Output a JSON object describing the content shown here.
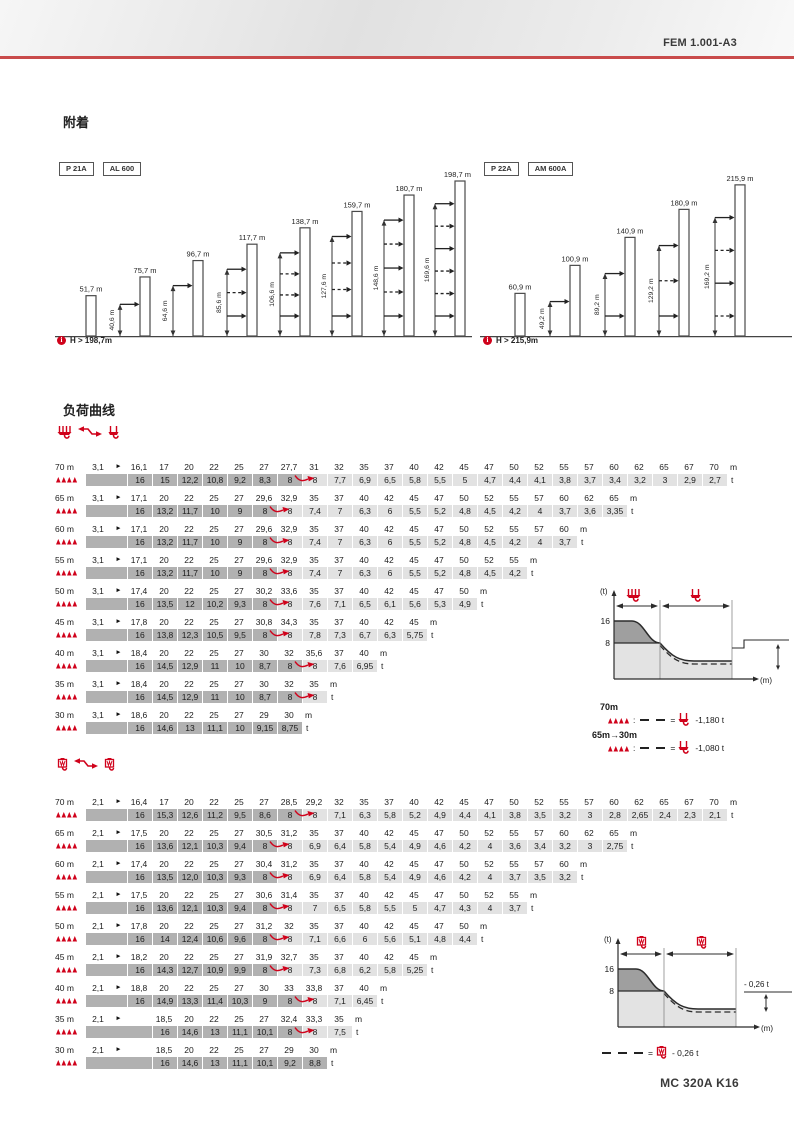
{
  "header": {
    "doc_ref": "FEM 1.001-A3"
  },
  "attachment": {
    "title": "附着",
    "diagrams": [
      {
        "badges": [
          "P 21A",
          "AL 600"
        ],
        "note": "H > 198,7m",
        "towers": [
          {
            "height_label": "51,7 m",
            "height_m": 51.7,
            "ties": []
          },
          {
            "height_label": "75,7 m",
            "height_m": 75.7,
            "anchor_label": "40,6 m",
            "anchor_m": 40.6,
            "ties": [
              "solid"
            ]
          },
          {
            "height_label": "96,7 m",
            "height_m": 96.7,
            "anchor_label": "64,6 m",
            "anchor_m": 64.6,
            "ties": [
              "solid"
            ]
          },
          {
            "height_label": "117,7 m",
            "height_m": 117.7,
            "anchor_label": "85,6 m",
            "anchor_m": 85.6,
            "ties": [
              "solid",
              "dashed",
              "solid"
            ]
          },
          {
            "height_label": "138,7 m",
            "height_m": 138.7,
            "anchor_label": "106,6 m",
            "anchor_m": 106.6,
            "ties": [
              "solid",
              "dashed",
              "dashed",
              "solid"
            ]
          },
          {
            "height_label": "159,7 m",
            "height_m": 159.7,
            "anchor_label": "127,6 m",
            "anchor_m": 127.6,
            "ties": [
              "solid",
              "dashed",
              "dashed",
              "solid"
            ]
          },
          {
            "height_label": "180,7 m",
            "height_m": 180.7,
            "anchor_label": "148,6 m",
            "anchor_m": 148.6,
            "ties": [
              "solid",
              "dashed",
              "solid",
              "dashed",
              "solid"
            ]
          },
          {
            "height_label": "198,7 m",
            "height_m": 198.7,
            "anchor_label": "169,6 m",
            "anchor_m": 169.6,
            "ties": [
              "solid",
              "dashed",
              "solid",
              "dashed",
              "dashed",
              "solid"
            ]
          }
        ]
      },
      {
        "badges": [
          "P 22A",
          "AM 600A"
        ],
        "note": "H > 215,9m",
        "towers": [
          {
            "height_label": "60,9 m",
            "height_m": 60.9,
            "ties": []
          },
          {
            "height_label": "100,9 m",
            "height_m": 100.9,
            "anchor_label": "49,2 m",
            "anchor_m": 49.2,
            "ties": [
              "solid"
            ]
          },
          {
            "height_label": "140,9 m",
            "height_m": 140.9,
            "anchor_label": "89,2 m",
            "anchor_m": 89.2,
            "ties": [
              "solid",
              "solid"
            ]
          },
          {
            "height_label": "180,9 m",
            "height_m": 180.9,
            "anchor_label": "129,2 m",
            "anchor_m": 129.2,
            "ties": [
              "solid",
              "dashed",
              "solid"
            ]
          },
          {
            "height_label": "215,9 m",
            "height_m": 215.9,
            "anchor_label": "169,2 m",
            "anchor_m": 169.2,
            "ties": [
              "solid",
              "dashed",
              "solid",
              "dashed"
            ]
          }
        ]
      }
    ]
  },
  "load_curves": {
    "title": "负荷曲线",
    "separators": {
      "colon": ":",
      "equals": "="
    },
    "tables": [
      {
        "icon": "four-fall-to-two-fall",
        "pointer": "►",
        "radius_unit": "m",
        "load_unit": "t",
        "rows": [
          {
            "height": "70 m",
            "min_radius": "3,1",
            "indent": 0,
            "arrow_idx": 6,
            "radii": [
              "16,1",
              "17",
              "20",
              "22",
              "25",
              "27",
              "27,7",
              "31",
              "32",
              "35",
              "37",
              "40",
              "42",
              "45",
              "47",
              "50",
              "52",
              "55",
              "57",
              "60",
              "62",
              "65",
              "67",
              "70"
            ],
            "loads": [
              "16",
              "15",
              "12,2",
              "10,8",
              "9,2",
              "8,3",
              "8",
              "8",
              "7,7",
              "6,9",
              "6,5",
              "5,8",
              "5,5",
              "5",
              "4,7",
              "4,4",
              "4,1",
              "3,8",
              "3,7",
              "3,4",
              "3,2",
              "3",
              "2,9",
              "2,7"
            ]
          },
          {
            "height": "65 m",
            "min_radius": "3,1",
            "indent": 0,
            "arrow_idx": 5,
            "radii": [
              "17,1",
              "20",
              "22",
              "25",
              "27",
              "29,6",
              "32,9",
              "35",
              "37",
              "40",
              "42",
              "45",
              "47",
              "50",
              "52",
              "55",
              "57",
              "60",
              "62",
              "65"
            ],
            "loads": [
              "16",
              "13,2",
              "11,7",
              "10",
              "9",
              "8",
              "8",
              "7,4",
              "7",
              "6,3",
              "6",
              "5,5",
              "5,2",
              "4,8",
              "4,5",
              "4,2",
              "4",
              "3,7",
              "3,6",
              "3,35"
            ]
          },
          {
            "height": "60 m",
            "min_radius": "3,1",
            "indent": 0,
            "arrow_idx": 5,
            "radii": [
              "17,1",
              "20",
              "22",
              "25",
              "27",
              "29,6",
              "32,9",
              "35",
              "37",
              "40",
              "42",
              "45",
              "47",
              "50",
              "52",
              "55",
              "57",
              "60"
            ],
            "loads": [
              "16",
              "13,2",
              "11,7",
              "10",
              "9",
              "8",
              "8",
              "7,4",
              "7",
              "6,3",
              "6",
              "5,5",
              "5,2",
              "4,8",
              "4,5",
              "4,2",
              "4",
              "3,7"
            ]
          },
          {
            "height": "55 m",
            "min_radius": "3,1",
            "indent": 0,
            "arrow_idx": 5,
            "radii": [
              "17,1",
              "20",
              "22",
              "25",
              "27",
              "29,6",
              "32,9",
              "35",
              "37",
              "40",
              "42",
              "45",
              "47",
              "50",
              "52",
              "55"
            ],
            "loads": [
              "16",
              "13,2",
              "11,7",
              "10",
              "9",
              "8",
              "8",
              "7,4",
              "7",
              "6,3",
              "6",
              "5,5",
              "5,2",
              "4,8",
              "4,5",
              "4,2"
            ]
          },
          {
            "height": "50 m",
            "min_radius": "3,1",
            "indent": 0,
            "arrow_idx": 5,
            "radii": [
              "17,4",
              "20",
              "22",
              "25",
              "27",
              "30,2",
              "33,6",
              "35",
              "37",
              "40",
              "42",
              "45",
              "47",
              "50"
            ],
            "loads": [
              "16",
              "13,5",
              "12",
              "10,2",
              "9,3",
              "8",
              "8",
              "7,6",
              "7,1",
              "6,5",
              "6,1",
              "5,6",
              "5,3",
              "4,9"
            ]
          },
          {
            "height": "45 m",
            "min_radius": "3,1",
            "indent": 0,
            "arrow_idx": 5,
            "radii": [
              "17,8",
              "20",
              "22",
              "25",
              "27",
              "30,8",
              "34,3",
              "35",
              "37",
              "40",
              "42",
              "45"
            ],
            "loads": [
              "16",
              "13,8",
              "12,3",
              "10,5",
              "9,5",
              "8",
              "8",
              "7,8",
              "7,3",
              "6,7",
              "6,3",
              "5,75"
            ]
          },
          {
            "height": "40 m",
            "min_radius": "3,1",
            "indent": 0,
            "arrow_idx": 6,
            "radii": [
              "18,4",
              "20",
              "22",
              "25",
              "27",
              "30",
              "32",
              "35,6",
              "37",
              "40"
            ],
            "loads": [
              "16",
              "14,5",
              "12,9",
              "11",
              "10",
              "8,7",
              "8",
              "8",
              "7,6",
              "6,95"
            ]
          },
          {
            "height": "35 m",
            "min_radius": "3,1",
            "indent": 0,
            "arrow_idx": 6,
            "radii": [
              "18,4",
              "20",
              "22",
              "25",
              "27",
              "30",
              "32",
              "35"
            ],
            "loads": [
              "16",
              "14,5",
              "12,9",
              "11",
              "10",
              "8,7",
              "8",
              "8"
            ]
          },
          {
            "height": "30 m",
            "min_radius": "3,1",
            "indent": 0,
            "radii": [
              "18,6",
              "20",
              "22",
              "25",
              "27",
              "29",
              "30"
            ],
            "loads": [
              "16",
              "14,6",
              "13",
              "11,1",
              "10",
              "9,15",
              "8,75"
            ]
          }
        ]
      },
      {
        "icon": "hook-block-swap",
        "pointer": "►",
        "radius_unit": "m",
        "load_unit": "t",
        "rows": [
          {
            "height": "70 m",
            "min_radius": "2,1",
            "indent": 0,
            "arrow_idx": 6,
            "radii": [
              "16,4",
              "17",
              "20",
              "22",
              "25",
              "27",
              "28,5",
              "29,2",
              "32",
              "35",
              "37",
              "40",
              "42",
              "45",
              "47",
              "50",
              "52",
              "55",
              "57",
              "60",
              "62",
              "65",
              "67",
              "70"
            ],
            "loads": [
              "16",
              "15,3",
              "12,6",
              "11,2",
              "9,5",
              "8,6",
              "8",
              "8",
              "7,1",
              "6,3",
              "5,8",
              "5,2",
              "4,9",
              "4,4",
              "4,1",
              "3,8",
              "3,5",
              "3,2",
              "3",
              "2,8",
              "2,65",
              "2,4",
              "2,3",
              "2,1"
            ]
          },
          {
            "height": "65 m",
            "min_radius": "2,1",
            "indent": 0,
            "arrow_idx": 5,
            "radii": [
              "17,5",
              "20",
              "22",
              "25",
              "27",
              "30,5",
              "31,2",
              "35",
              "37",
              "40",
              "42",
              "45",
              "47",
              "50",
              "52",
              "55",
              "57",
              "60",
              "62",
              "65"
            ],
            "loads": [
              "16",
              "13,6",
              "12,1",
              "10,3",
              "9,4",
              "8",
              "8",
              "6,9",
              "6,4",
              "5,8",
              "5,4",
              "4,9",
              "4,6",
              "4,2",
              "4",
              "3,6",
              "3,4",
              "3,2",
              "3",
              "2,75"
            ]
          },
          {
            "height": "60 m",
            "min_radius": "2,1",
            "indent": 0,
            "arrow_idx": 5,
            "radii": [
              "17,4",
              "20",
              "22",
              "25",
              "27",
              "30,4",
              "31,2",
              "35",
              "37",
              "40",
              "42",
              "45",
              "47",
              "50",
              "52",
              "55",
              "57",
              "60"
            ],
            "loads": [
              "16",
              "13,5",
              "12,0",
              "10,3",
              "9,3",
              "8",
              "8",
              "6,9",
              "6,4",
              "5,8",
              "5,4",
              "4,9",
              "4,6",
              "4,2",
              "4",
              "3,7",
              "3,5",
              "3,2"
            ]
          },
          {
            "height": "55 m",
            "min_radius": "2,1",
            "indent": 0,
            "arrow_idx": 5,
            "radii": [
              "17,5",
              "20",
              "22",
              "25",
              "27",
              "30,6",
              "31,4",
              "35",
              "37",
              "40",
              "42",
              "45",
              "47",
              "50",
              "52",
              "55"
            ],
            "loads": [
              "16",
              "13,6",
              "12,1",
              "10,3",
              "9,4",
              "8",
              "8",
              "7",
              "6,5",
              "5,8",
              "5,5",
              "5",
              "4,7",
              "4,3",
              "4",
              "3,7"
            ]
          },
          {
            "height": "50 m",
            "min_radius": "2,1",
            "indent": 0,
            "arrow_idx": 5,
            "radii": [
              "17,8",
              "20",
              "22",
              "25",
              "27",
              "31,2",
              "32",
              "35",
              "37",
              "40",
              "42",
              "45",
              "47",
              "50"
            ],
            "loads": [
              "16",
              "14",
              "12,4",
              "10,6",
              "9,6",
              "8",
              "8",
              "7,1",
              "6,6",
              "6",
              "5,6",
              "5,1",
              "4,8",
              "4,4"
            ]
          },
          {
            "height": "45 m",
            "min_radius": "2,1",
            "indent": 0,
            "arrow_idx": 5,
            "radii": [
              "18,2",
              "20",
              "22",
              "25",
              "27",
              "31,9",
              "32,7",
              "35",
              "37",
              "40",
              "42",
              "45"
            ],
            "loads": [
              "16",
              "14,3",
              "12,7",
              "10,9",
              "9,9",
              "8",
              "8",
              "7,3",
              "6,8",
              "6,2",
              "5,8",
              "5,25"
            ]
          },
          {
            "height": "40 m",
            "min_radius": "2,1",
            "indent": 0,
            "arrow_idx": 6,
            "radii": [
              "18,8",
              "20",
              "22",
              "25",
              "27",
              "30",
              "33",
              "33,8",
              "37",
              "40"
            ],
            "loads": [
              "16",
              "14,9",
              "13,3",
              "11,4",
              "10,3",
              "9",
              "8",
              "8",
              "7,1",
              "6,45"
            ]
          },
          {
            "height": "35 m",
            "min_radius": "2,1",
            "indent": 1,
            "arrow_idx": 5,
            "radii": [
              "18,5",
              "20",
              "22",
              "25",
              "27",
              "32,4",
              "33,3",
              "35"
            ],
            "loads": [
              "16",
              "14,6",
              "13",
              "11,1",
              "10,1",
              "8",
              "8",
              "7,5"
            ]
          },
          {
            "height": "30 m",
            "min_radius": "2,1",
            "indent": 1,
            "radii": [
              "18,5",
              "20",
              "22",
              "25",
              "27",
              "29",
              "30"
            ],
            "loads": [
              "16",
              "14,6",
              "13",
              "11,1",
              "10,1",
              "9,2",
              "8,8"
            ]
          }
        ]
      }
    ],
    "charts": [
      {
        "ylabel": "(t)",
        "xlabel": "(m)",
        "ytick_top": "16",
        "ytick_bottom": "8",
        "legend": [
          {
            "range": "70m",
            "value": "-1,180 t"
          },
          {
            "range": "65m→30m",
            "value": "-1,080 t"
          }
        ]
      },
      {
        "ylabel": "(t)",
        "xlabel": "(m)",
        "ytick_top": "16",
        "ytick_bottom": "8",
        "annotation": "- 0,26 t",
        "legend": [
          {
            "value": "- 0,26 t"
          }
        ]
      }
    ]
  },
  "footer": {
    "model": "MC 320A K16"
  }
}
